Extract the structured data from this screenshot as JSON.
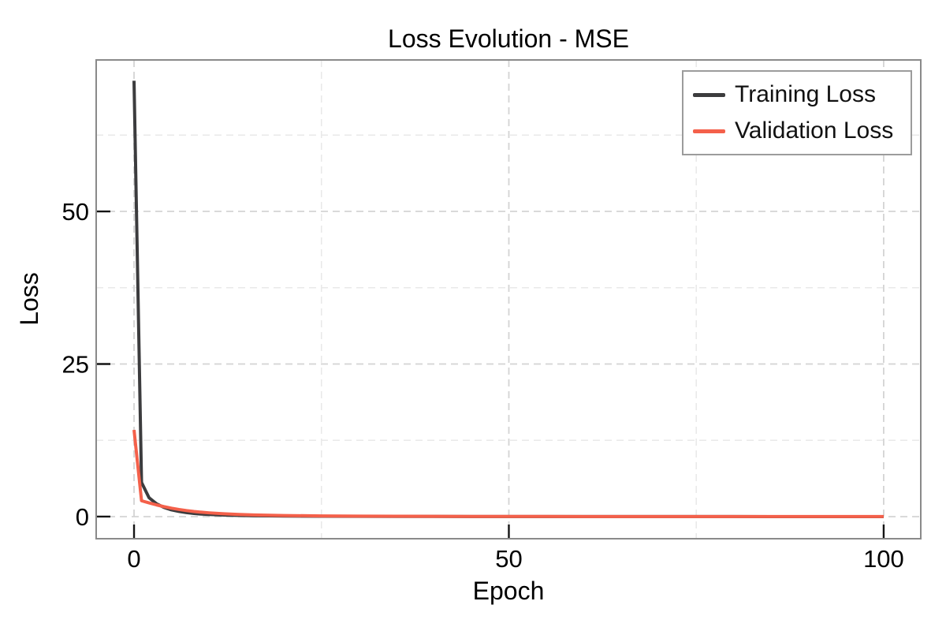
{
  "chart_data": {
    "type": "line",
    "title": "Loss Evolution - MSE",
    "xlabel": "Epoch",
    "ylabel": "Loss",
    "xlim": [
      -5.05,
      104.95
    ],
    "ylim": [
      -3.62,
      74.81
    ],
    "x_ticks": [
      0,
      50,
      100
    ],
    "x_tick_labels": [
      "0",
      "50",
      "100"
    ],
    "x_minor_gridlines": [
      25,
      75
    ],
    "y_ticks": [
      0,
      25,
      50
    ],
    "y_tick_labels": [
      "0",
      "25",
      "50"
    ],
    "y_minor_gridlines": [
      12.5,
      37.5,
      62.5
    ],
    "grid": "dashed",
    "legend_position": "top-right",
    "style": {
      "frame_color": "#8A8A8A",
      "tick_color": "#141414",
      "grid_major_color": "#D4D4D4",
      "grid_minor_color": "#E9E9E9",
      "background": "#FFFFFF"
    },
    "series": [
      {
        "name": "Training Loss",
        "color": "#3C3C3E",
        "points": [
          [
            0,
            71.4
          ],
          [
            1,
            5.6
          ],
          [
            2,
            3.1
          ],
          [
            3,
            2.1
          ],
          [
            4,
            1.5
          ],
          [
            5,
            1.1
          ],
          [
            6,
            0.85
          ],
          [
            7,
            0.66
          ],
          [
            8,
            0.52
          ],
          [
            9,
            0.42
          ],
          [
            10,
            0.35
          ],
          [
            12,
            0.25
          ],
          [
            14,
            0.19
          ],
          [
            16,
            0.15
          ],
          [
            18,
            0.12
          ],
          [
            20,
            0.1
          ],
          [
            25,
            0.065
          ],
          [
            30,
            0.046
          ],
          [
            35,
            0.034
          ],
          [
            40,
            0.026
          ],
          [
            45,
            0.021
          ],
          [
            50,
            0.017
          ],
          [
            55,
            0.014
          ],
          [
            60,
            0.012
          ],
          [
            65,
            0.01
          ],
          [
            70,
            0.0085
          ],
          [
            75,
            0.0075
          ],
          [
            80,
            0.0065
          ],
          [
            85,
            0.0058
          ],
          [
            90,
            0.0052
          ],
          [
            95,
            0.0047
          ],
          [
            100,
            0.0043
          ]
        ]
      },
      {
        "name": "Validation Loss",
        "color": "#F4604A",
        "points": [
          [
            0,
            14.2
          ],
          [
            1,
            2.6
          ],
          [
            2,
            2.25
          ],
          [
            3,
            1.92
          ],
          [
            4,
            1.63
          ],
          [
            5,
            1.38
          ],
          [
            6,
            1.17
          ],
          [
            7,
            0.99
          ],
          [
            8,
            0.84
          ],
          [
            9,
            0.72
          ],
          [
            10,
            0.62
          ],
          [
            12,
            0.46
          ],
          [
            14,
            0.35
          ],
          [
            16,
            0.27
          ],
          [
            18,
            0.22
          ],
          [
            20,
            0.18
          ],
          [
            25,
            0.115
          ],
          [
            30,
            0.082
          ],
          [
            35,
            0.061
          ],
          [
            40,
            0.047
          ],
          [
            45,
            0.037
          ],
          [
            50,
            0.03
          ],
          [
            55,
            0.025
          ],
          [
            60,
            0.021
          ],
          [
            65,
            0.018
          ],
          [
            70,
            0.015
          ],
          [
            75,
            0.013
          ],
          [
            80,
            0.012
          ],
          [
            85,
            0.01
          ],
          [
            90,
            0.009
          ],
          [
            95,
            0.008
          ],
          [
            100,
            0.0075
          ]
        ]
      }
    ]
  }
}
